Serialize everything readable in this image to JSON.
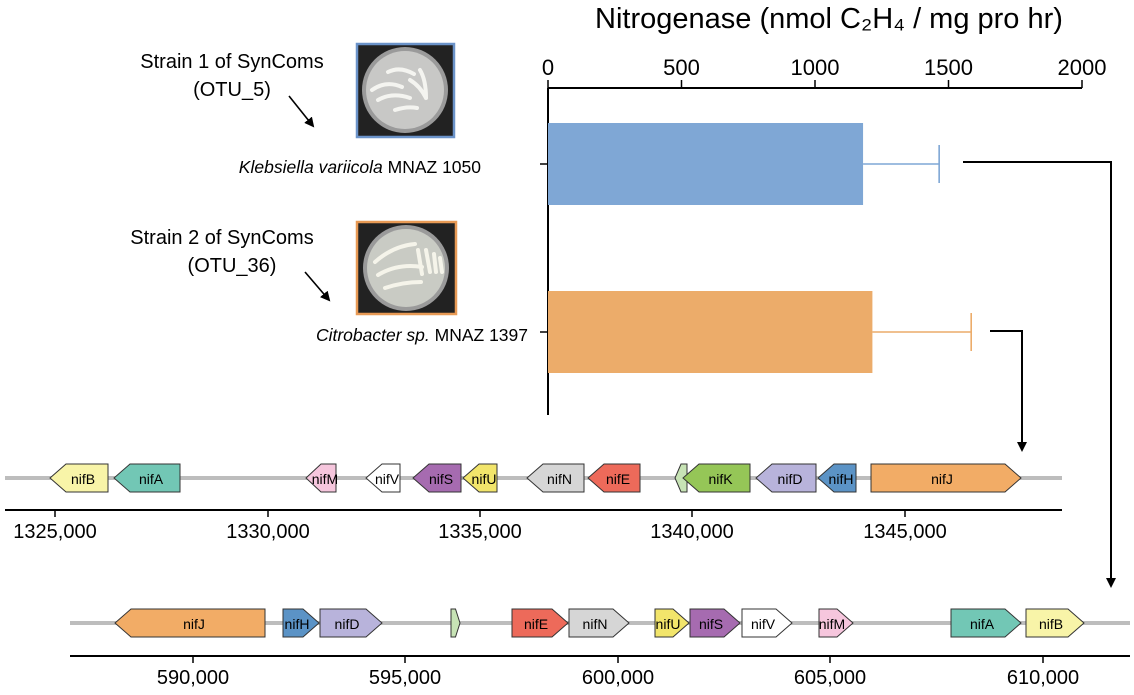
{
  "chart_data": {
    "type": "bar",
    "orientation": "horizontal",
    "title": "Nitrogenase (nmol C₂H₄ / mg pro hr)",
    "xticks": [
      "0",
      "500",
      "1000",
      "1500",
      "2000"
    ],
    "xlim": [
      0,
      2000
    ],
    "categories": [
      "Klebsiella variicola MNAZ 1050",
      "Citrobacter sp. MNAZ 1397"
    ],
    "values": [
      1180,
      1215
    ],
    "errors": [
      285,
      370
    ],
    "colors": [
      "#7fa7d5",
      "#ecac6a"
    ],
    "error_colors": [
      "#7fa7d5",
      "#ecac6a"
    ]
  },
  "strains": [
    {
      "label_line1": "Strain 1 of SynComs",
      "label_line2": "(OTU_5)",
      "species_italic": "Klebsiella variicola",
      "species_id": " MNAZ 1050",
      "border_color": "#6b93c9"
    },
    {
      "label_line1": "Strain 2 of SynComs",
      "label_line2": "(OTU_36)",
      "species_italic": "Citrobacter sp.",
      "species_id": " MNAZ 1397",
      "border_color": "#e89a55"
    }
  ],
  "gene_maps": [
    {
      "axis_ticks": [
        "1325,000",
        "1330,000",
        "1335,000",
        "1340,000",
        "1345,000"
      ],
      "genes": [
        {
          "name": "nifB",
          "dir": "left",
          "color": "#f8f4a8"
        },
        {
          "name": "nifA",
          "dir": "left",
          "color": "#72c7b5"
        },
        {
          "name": "nifM",
          "dir": "left",
          "color": "#f6c6dd"
        },
        {
          "name": "nifV",
          "dir": "left",
          "color": "#ffffff"
        },
        {
          "name": "nifS",
          "dir": "left",
          "color": "#a66bb0"
        },
        {
          "name": "nifU",
          "dir": "left",
          "color": "#f2e56b"
        },
        {
          "name": "nifN",
          "dir": "left",
          "color": "#d6d6d6"
        },
        {
          "name": "nifE",
          "dir": "left",
          "color": "#ed6a5a"
        },
        {
          "name": "",
          "dir": "left",
          "color": "#c7e3b5"
        },
        {
          "name": "nifK",
          "dir": "left",
          "color": "#95c657"
        },
        {
          "name": "nifD",
          "dir": "left",
          "color": "#b8b3db"
        },
        {
          "name": "nifH",
          "dir": "left",
          "color": "#5b93c6"
        },
        {
          "name": "nifJ",
          "dir": "right",
          "color": "#f2ac66"
        }
      ]
    },
    {
      "axis_ticks": [
        "590,000",
        "595,000",
        "600,000",
        "605,000",
        "610,000"
      ],
      "genes": [
        {
          "name": "nifJ",
          "dir": "left",
          "color": "#f2ac66"
        },
        {
          "name": "nifH",
          "dir": "right",
          "color": "#5b93c6"
        },
        {
          "name": "nifD",
          "dir": "right",
          "color": "#b8b3db"
        },
        {
          "name": "",
          "dir": "right",
          "color": "#c7e3b5"
        },
        {
          "name": "nifE",
          "dir": "right",
          "color": "#ed6a5a"
        },
        {
          "name": "nifN",
          "dir": "right",
          "color": "#d6d6d6"
        },
        {
          "name": "nifU",
          "dir": "right",
          "color": "#f2e56b"
        },
        {
          "name": "nifS",
          "dir": "right",
          "color": "#a66bb0"
        },
        {
          "name": "nifV",
          "dir": "right",
          "color": "#ffffff"
        },
        {
          "name": "nifM",
          "dir": "right",
          "color": "#f6c6dd"
        },
        {
          "name": "nifA",
          "dir": "right",
          "color": "#72c7b5"
        },
        {
          "name": "nifB",
          "dir": "right",
          "color": "#f8f4a8"
        }
      ]
    }
  ]
}
